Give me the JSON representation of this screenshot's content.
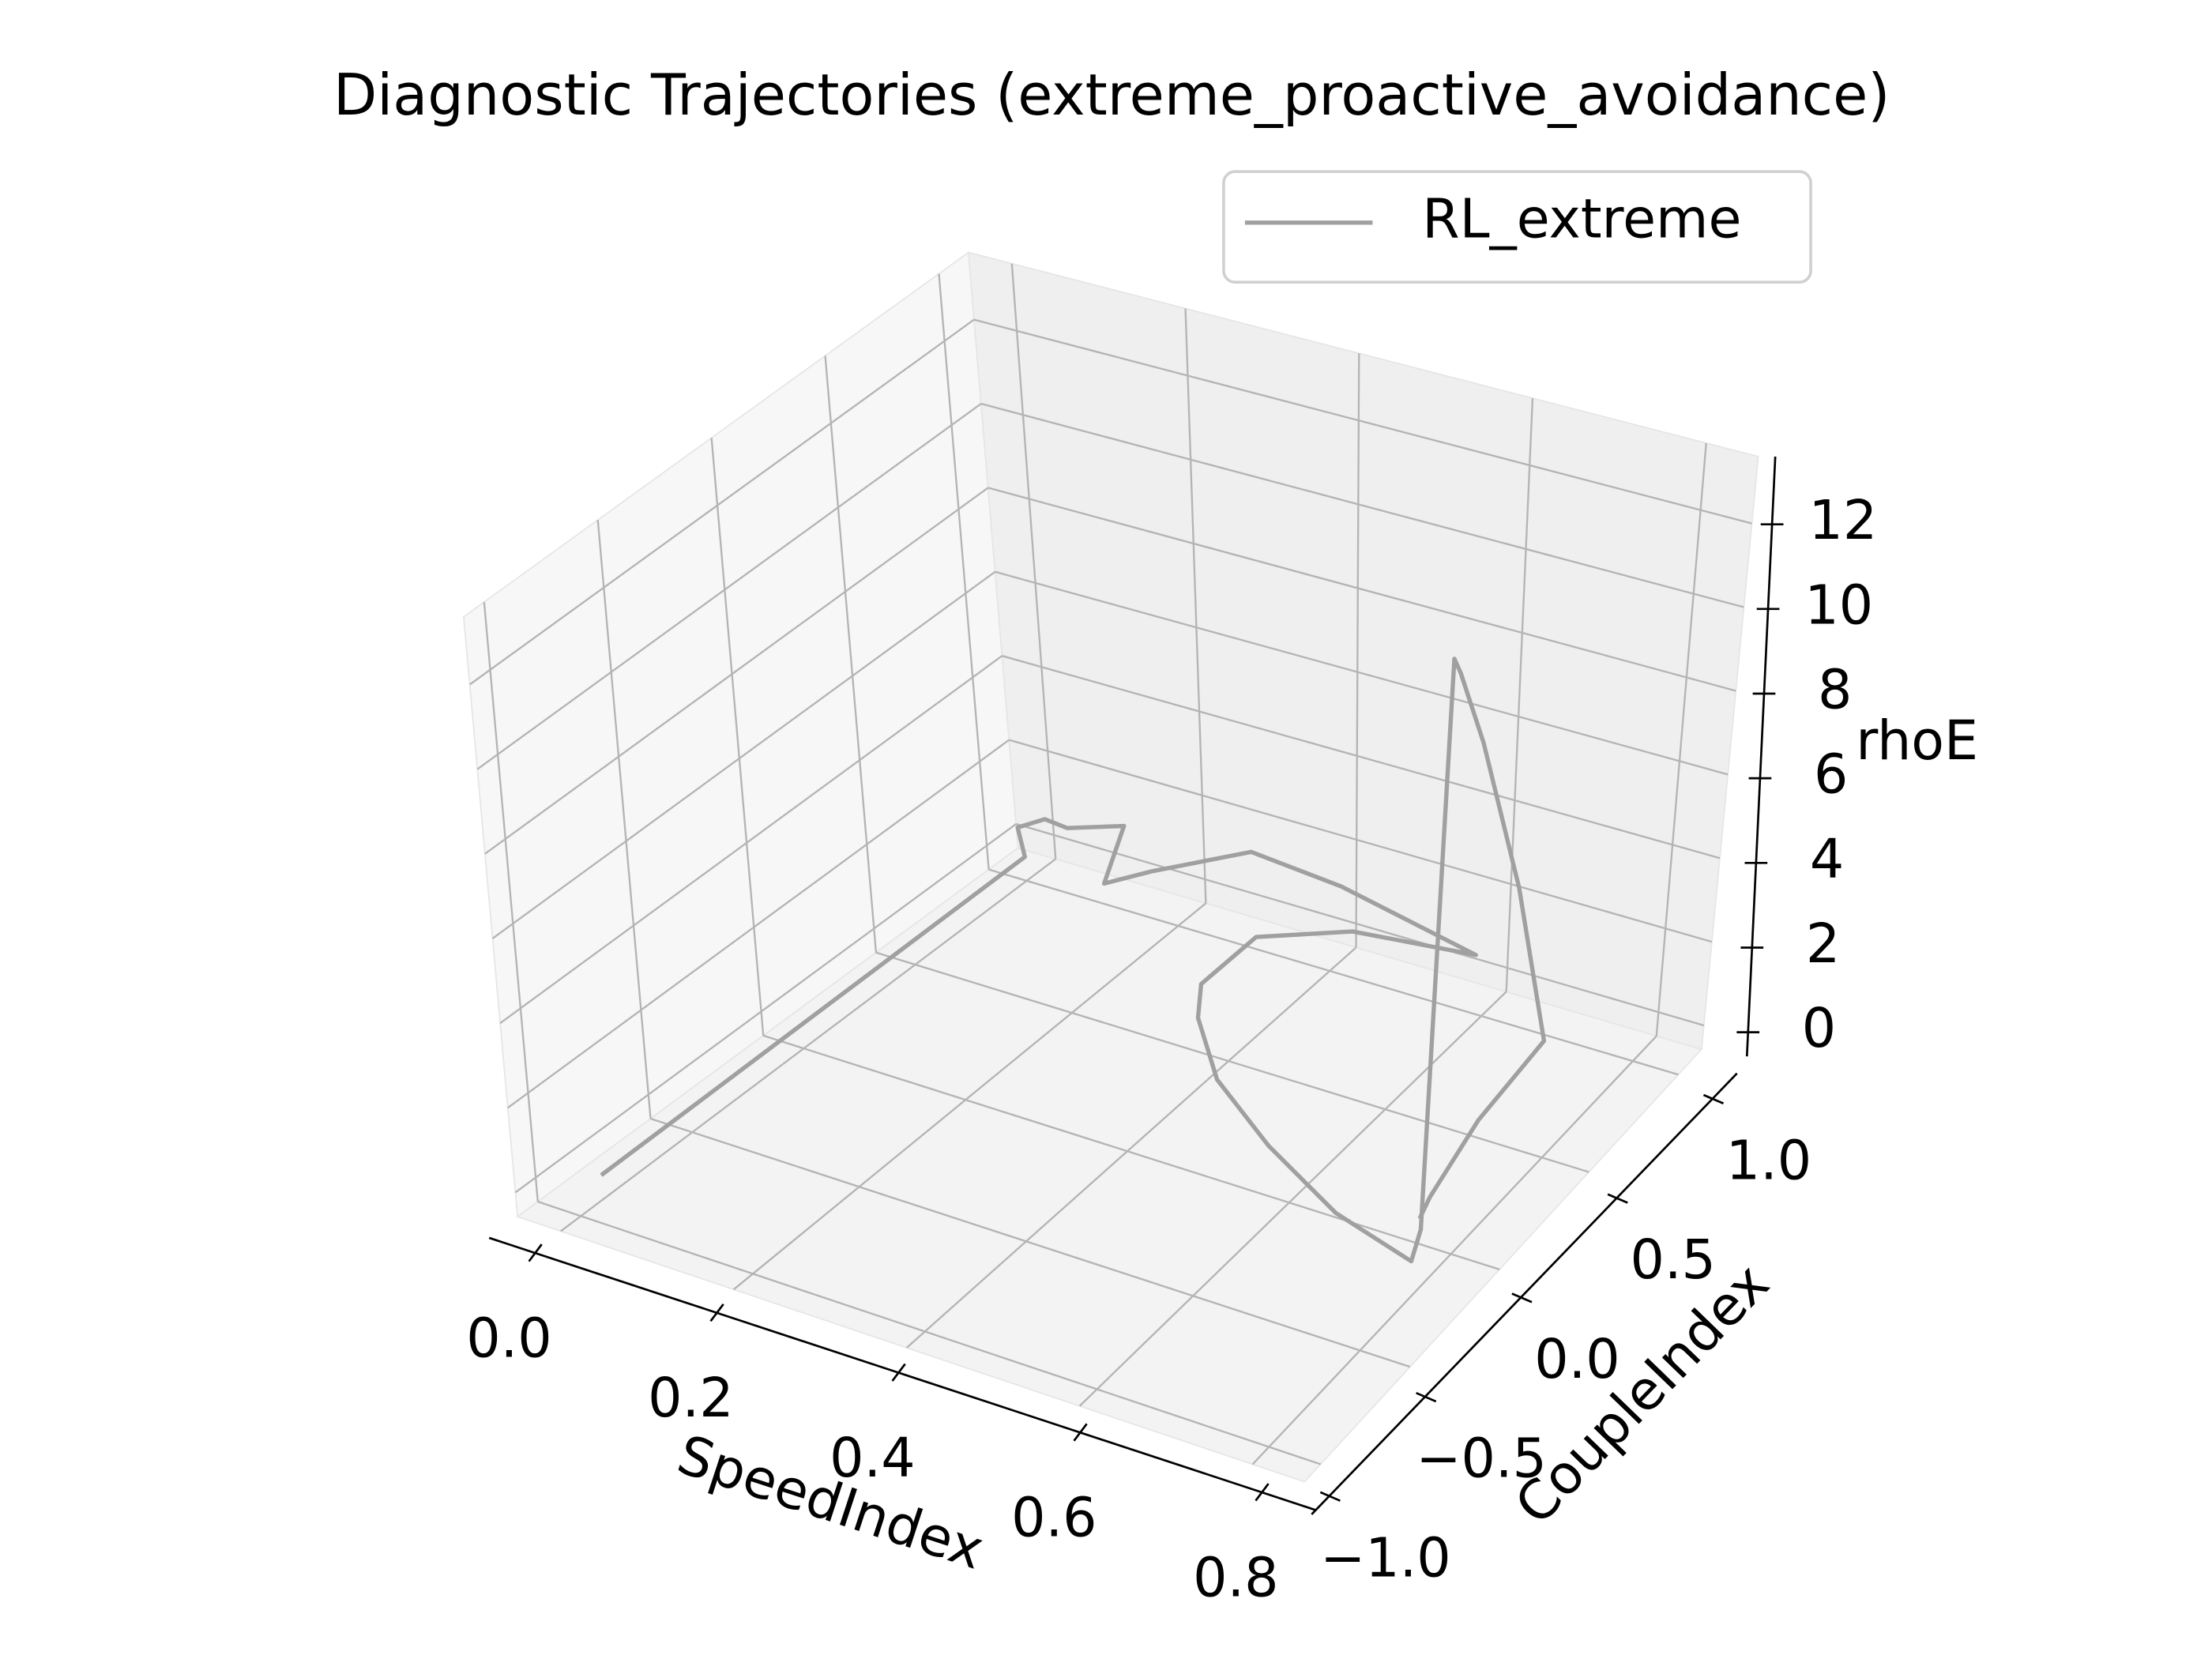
{
  "chart_data": {
    "type": "line3d",
    "title": "Diagnostic Trajectories (extreme_proactive_avoidance)",
    "xlabel": "SpeedIndex",
    "ylabel": "CoupleIndex",
    "zlabel": "rhoE",
    "xlim": [
      -0.05,
      0.86
    ],
    "ylim": [
      -1.09,
      1.13
    ],
    "zlim": [
      -0.57,
      13.6
    ],
    "xticks": [
      {
        "value": 0,
        "label": "0.0"
      },
      0.2,
      0.4,
      0.6,
      0.8
    ],
    "yticks": [
      {
        "value": -1,
        "label": "−1.0"
      },
      {
        "value": -0.5,
        "label": "−0.5"
      },
      {
        "value": 0,
        "label": "0.0"
      },
      0.5,
      {
        "value": 1,
        "label": "1.0"
      }
    ],
    "zticks": [
      0,
      2,
      4,
      6,
      8,
      10,
      12
    ],
    "grid": true,
    "legend": "upper right",
    "series": [
      {
        "name": "RL_extreme",
        "color": "#a0a0a0",
        "x": [
          0.0,
          0.0,
          0.012,
          0.027,
          0.059,
          0.11,
          0.16,
          0.19,
          0.312,
          0.436,
          0.597,
          0.451,
          0.364,
          0.363,
          0.396,
          0.477,
          0.589,
          0.713,
          0.825,
          0.77,
          0.77,
          0.77,
          0.75,
          0.75,
          0.75,
          0.75,
          0.76,
          0.77
        ],
        "y": [
          -0.9,
          1.0,
          0.94,
          1.01,
          1.0,
          1.08,
          0.81,
          0.92,
          0.95,
          0.915,
          0.97,
          0.917,
          0.775,
          0.51,
          0.366,
          0.135,
          -0.07,
          -0.257,
          -0.355,
          -0.04,
          -0.04,
          0.0,
          0.25,
          0.5,
          0.7,
          0.35,
          0.05,
          -0.05
        ],
        "z": [
          0,
          0,
          1,
          1,
          1,
          1,
          1,
          1,
          2,
          2,
          1,
          1,
          1,
          1,
          1,
          1,
          1,
          1,
          1,
          0,
          13.3,
          12.8,
          10,
          5.5,
          1,
          0.7,
          0.3,
          0.3
        ]
      }
    ]
  }
}
